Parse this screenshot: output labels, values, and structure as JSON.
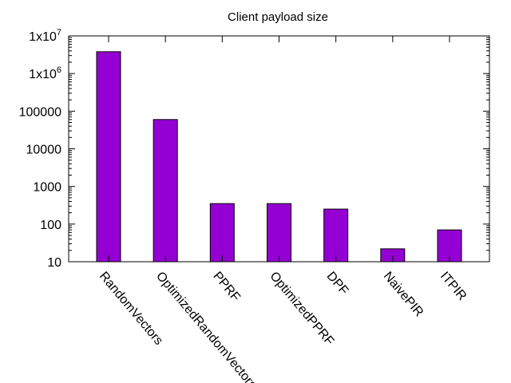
{
  "chart_data": {
    "type": "bar",
    "title": "Client payload size",
    "xlabel": "",
    "ylabel": "",
    "yscale": "log",
    "ylim": [
      10,
      10000000
    ],
    "grid": false,
    "legend": "none",
    "bar_color": "#9400D3",
    "categories": [
      "RandomVectors",
      "OptimizedRandomVectors",
      "PPRF",
      "OptimizedPPRF",
      "DPF",
      "NaivePIR",
      "ITPIR"
    ],
    "values": [
      3800000,
      60000,
      350,
      350,
      250,
      22,
      70
    ],
    "yticks": [
      {
        "base": "10",
        "exp": ""
      },
      {
        "base": "100",
        "exp": ""
      },
      {
        "base": "1000",
        "exp": ""
      },
      {
        "base": "10000",
        "exp": ""
      },
      {
        "base": "100000",
        "exp": ""
      },
      {
        "base": "1x10",
        "exp": "6"
      },
      {
        "base": "1x10",
        "exp": "7"
      }
    ]
  }
}
